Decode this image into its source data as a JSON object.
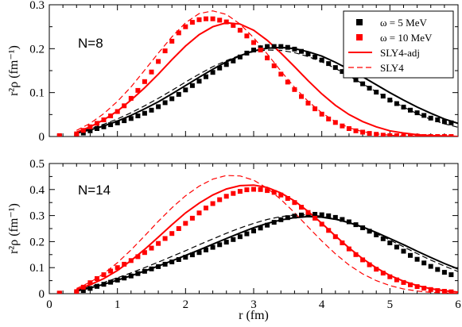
{
  "chart_data": [
    {
      "type": "scatter",
      "panel_label": "N=8",
      "ylabel": "r²ρ (fm⁻¹)",
      "xlabel": "",
      "xlim": [
        0,
        6
      ],
      "ylim": [
        0,
        0.3
      ],
      "xticks": [
        0,
        1,
        2,
        3,
        4,
        5,
        6
      ],
      "yticks": [
        0,
        0.1,
        0.2,
        0.3
      ],
      "ytick_labels": [
        "0",
        "0.1",
        "0.2",
        "0.3"
      ],
      "show_x_tick_labels": false,
      "legend_position": "top-right",
      "legend": [
        {
          "label": "ω =   5 MeV",
          "style": "square",
          "color": "#000000"
        },
        {
          "label": "ω = 10 MeV",
          "style": "square",
          "color": "#ff0000"
        },
        {
          "label": "SLY4-adj",
          "style": "solid",
          "color": "#ff0000"
        },
        {
          "label": "SLY4",
          "style": "dashed",
          "color": "#ff0000"
        }
      ],
      "series": [
        {
          "color": "#000000",
          "style": "square",
          "x": [
            0.15,
            0.4,
            0.5,
            0.6,
            0.7,
            0.8,
            0.9,
            1.0,
            1.1,
            1.2,
            1.3,
            1.4,
            1.5,
            1.6,
            1.7,
            1.8,
            1.9,
            2.0,
            2.1,
            2.2,
            2.3,
            2.4,
            2.5,
            2.6,
            2.7,
            2.8,
            2.9,
            3.0,
            3.1,
            3.2,
            3.3,
            3.4,
            3.5,
            3.6,
            3.7,
            3.8,
            3.9,
            4.0,
            4.1,
            4.2,
            4.3,
            4.4,
            4.5,
            4.6,
            4.7,
            4.8,
            4.9,
            5.0,
            5.1,
            5.2,
            5.3,
            5.4,
            5.5,
            5.6,
            5.7,
            5.8,
            5.9
          ],
          "y": [
            0.001,
            0.003,
            0.008,
            0.013,
            0.018,
            0.022,
            0.027,
            0.031,
            0.036,
            0.041,
            0.047,
            0.053,
            0.06,
            0.068,
            0.077,
            0.086,
            0.096,
            0.106,
            0.116,
            0.126,
            0.136,
            0.146,
            0.156,
            0.164,
            0.172,
            0.181,
            0.19,
            0.197,
            0.202,
            0.205,
            0.205,
            0.205,
            0.203,
            0.199,
            0.194,
            0.188,
            0.181,
            0.174,
            0.166,
            0.157,
            0.148,
            0.139,
            0.129,
            0.12,
            0.11,
            0.101,
            0.092,
            0.083,
            0.075,
            0.067,
            0.06,
            0.054,
            0.048,
            0.042,
            0.038,
            0.034,
            0.031
          ]
        },
        {
          "color": "#ff0000",
          "style": "square",
          "x": [
            0.15,
            0.4,
            0.5,
            0.6,
            0.7,
            0.8,
            0.9,
            1.0,
            1.1,
            1.2,
            1.3,
            1.4,
            1.5,
            1.6,
            1.7,
            1.8,
            1.9,
            2.0,
            2.1,
            2.2,
            2.3,
            2.4,
            2.5,
            2.6,
            2.7,
            2.8,
            2.9,
            3.0,
            3.1,
            3.2,
            3.3,
            3.4,
            3.5,
            3.6,
            3.7,
            3.8,
            3.9,
            4.0,
            4.1,
            4.2,
            4.3,
            4.4,
            4.5,
            4.6,
            4.7,
            4.8,
            4.9,
            5.0,
            5.1,
            5.2,
            5.3,
            5.4,
            5.5,
            5.6,
            5.7,
            5.8,
            5.9
          ],
          "y": [
            0.002,
            0.006,
            0.014,
            0.022,
            0.03,
            0.038,
            0.047,
            0.057,
            0.07,
            0.087,
            0.105,
            0.125,
            0.147,
            0.171,
            0.195,
            0.217,
            0.236,
            0.25,
            0.26,
            0.266,
            0.268,
            0.268,
            0.265,
            0.261,
            0.253,
            0.242,
            0.229,
            0.214,
            0.197,
            0.179,
            0.161,
            0.142,
            0.124,
            0.107,
            0.091,
            0.076,
            0.063,
            0.051,
            0.04,
            0.032,
            0.024,
            0.018,
            0.013,
            0.01,
            0.007,
            0.005,
            0.003,
            0.002,
            0.002,
            0.001,
            0.001,
            0.001,
            0.0,
            0.0,
            0.0,
            0.0,
            0.0
          ]
        },
        {
          "color": "#000000",
          "style": "solid",
          "x": [
            0.4,
            0.6,
            0.8,
            1.0,
            1.2,
            1.4,
            1.6,
            1.8,
            2.0,
            2.2,
            2.4,
            2.6,
            2.8,
            3.0,
            3.2,
            3.4,
            3.6,
            3.8,
            4.0,
            4.2,
            4.4,
            4.6,
            4.8,
            5.0,
            5.2,
            5.4,
            5.6,
            5.8,
            6.0
          ],
          "y": [
            0.008,
            0.015,
            0.024,
            0.035,
            0.048,
            0.063,
            0.079,
            0.097,
            0.116,
            0.135,
            0.153,
            0.17,
            0.184,
            0.195,
            0.201,
            0.203,
            0.2,
            0.193,
            0.183,
            0.169,
            0.153,
            0.136,
            0.118,
            0.1,
            0.083,
            0.067,
            0.053,
            0.04,
            0.03
          ]
        },
        {
          "color": "#000000",
          "style": "dashed",
          "x": [
            0.4,
            0.6,
            0.8,
            1.0,
            1.2,
            1.4,
            1.6,
            1.8,
            2.0,
            2.2,
            2.4,
            2.6,
            2.8,
            3.0,
            3.2,
            3.4,
            3.6,
            3.8,
            4.0,
            4.2,
            4.4,
            4.6,
            4.8,
            5.0,
            5.2,
            5.4,
            5.6,
            5.8,
            6.0
          ],
          "y": [
            0.01,
            0.018,
            0.028,
            0.04,
            0.054,
            0.07,
            0.087,
            0.105,
            0.124,
            0.142,
            0.159,
            0.173,
            0.185,
            0.193,
            0.197,
            0.196,
            0.191,
            0.182,
            0.17,
            0.155,
            0.138,
            0.12,
            0.102,
            0.084,
            0.067,
            0.052,
            0.039,
            0.029,
            0.021
          ]
        },
        {
          "color": "#ff0000",
          "style": "solid",
          "x": [
            0.4,
            0.6,
            0.8,
            1.0,
            1.2,
            1.4,
            1.6,
            1.8,
            2.0,
            2.2,
            2.4,
            2.6,
            2.8,
            3.0,
            3.2,
            3.4,
            3.6,
            3.8,
            4.0,
            4.2,
            4.4,
            4.6,
            4.8,
            5.0,
            5.2,
            5.4,
            5.6,
            5.8,
            6.0
          ],
          "y": [
            0.01,
            0.022,
            0.038,
            0.058,
            0.083,
            0.111,
            0.142,
            0.175,
            0.206,
            0.232,
            0.25,
            0.259,
            0.256,
            0.242,
            0.219,
            0.19,
            0.159,
            0.127,
            0.097,
            0.071,
            0.05,
            0.034,
            0.022,
            0.013,
            0.008,
            0.004,
            0.002,
            0.001,
            0.0
          ]
        },
        {
          "color": "#ff0000",
          "style": "dashed",
          "x": [
            0.4,
            0.6,
            0.8,
            1.0,
            1.2,
            1.4,
            1.6,
            1.8,
            2.0,
            2.2,
            2.4,
            2.6,
            2.8,
            3.0,
            3.2,
            3.4,
            3.6,
            3.8,
            4.0,
            4.2,
            4.4,
            4.6,
            4.8,
            5.0,
            5.2,
            5.4,
            5.6,
            5.8,
            6.0
          ],
          "y": [
            0.014,
            0.03,
            0.052,
            0.08,
            0.113,
            0.151,
            0.19,
            0.227,
            0.259,
            0.28,
            0.286,
            0.278,
            0.256,
            0.225,
            0.188,
            0.149,
            0.112,
            0.08,
            0.054,
            0.034,
            0.02,
            0.011,
            0.006,
            0.003,
            0.001,
            0.001,
            0.0,
            0.0,
            0.0
          ]
        }
      ]
    },
    {
      "type": "scatter",
      "panel_label": "N=14",
      "ylabel": "r²ρ (fm⁻¹)",
      "xlabel": "r (fm)",
      "xlim": [
        0,
        6
      ],
      "ylim": [
        0,
        0.5
      ],
      "xticks": [
        0,
        1,
        2,
        3,
        4,
        5,
        6
      ],
      "xtick_labels": [
        "0",
        "1",
        "2",
        "3",
        "4",
        "5",
        "6"
      ],
      "yticks": [
        0,
        0.1,
        0.2,
        0.3,
        0.4,
        0.5
      ],
      "ytick_labels": [
        "0",
        "0.1",
        "0.2",
        "0.3",
        "0.4",
        "0.5"
      ],
      "show_x_tick_labels": true,
      "series": [
        {
          "color": "#000000",
          "style": "square",
          "x": [
            0.15,
            0.4,
            0.5,
            0.6,
            0.7,
            0.8,
            0.9,
            1.0,
            1.1,
            1.2,
            1.3,
            1.4,
            1.5,
            1.6,
            1.7,
            1.8,
            1.9,
            2.0,
            2.1,
            2.2,
            2.3,
            2.4,
            2.5,
            2.6,
            2.7,
            2.8,
            2.9,
            3.0,
            3.1,
            3.2,
            3.3,
            3.4,
            3.5,
            3.6,
            3.7,
            3.8,
            3.9,
            4.0,
            4.1,
            4.2,
            4.3,
            4.4,
            4.5,
            4.6,
            4.7,
            4.8,
            4.9,
            5.0,
            5.1,
            5.2,
            5.3,
            5.4,
            5.5,
            5.6,
            5.7,
            5.8,
            5.9
          ],
          "y": [
            0.001,
            0.004,
            0.012,
            0.02,
            0.028,
            0.036,
            0.044,
            0.052,
            0.06,
            0.068,
            0.077,
            0.086,
            0.095,
            0.104,
            0.113,
            0.122,
            0.131,
            0.14,
            0.149,
            0.158,
            0.168,
            0.178,
            0.188,
            0.198,
            0.208,
            0.219,
            0.23,
            0.241,
            0.252,
            0.263,
            0.274,
            0.284,
            0.292,
            0.298,
            0.302,
            0.304,
            0.305,
            0.303,
            0.299,
            0.293,
            0.285,
            0.276,
            0.265,
            0.253,
            0.24,
            0.226,
            0.211,
            0.195,
            0.179,
            0.163,
            0.147,
            0.132,
            0.118,
            0.105,
            0.093,
            0.082,
            0.073
          ]
        },
        {
          "color": "#ff0000",
          "style": "square",
          "x": [
            0.15,
            0.4,
            0.5,
            0.6,
            0.7,
            0.8,
            0.9,
            1.0,
            1.1,
            1.2,
            1.3,
            1.4,
            1.5,
            1.6,
            1.7,
            1.8,
            1.9,
            2.0,
            2.1,
            2.2,
            2.3,
            2.4,
            2.5,
            2.6,
            2.7,
            2.8,
            2.9,
            3.0,
            3.1,
            3.2,
            3.3,
            3.4,
            3.5,
            3.6,
            3.7,
            3.8,
            3.9,
            4.0,
            4.1,
            4.2,
            4.3,
            4.4,
            4.5,
            4.6,
            4.7,
            4.8,
            4.9,
            5.0,
            5.1,
            5.2,
            5.3,
            5.4,
            5.5,
            5.6,
            5.7,
            5.8,
            5.9
          ],
          "y": [
            0.002,
            0.008,
            0.025,
            0.042,
            0.058,
            0.073,
            0.087,
            0.1,
            0.113,
            0.127,
            0.142,
            0.158,
            0.175,
            0.193,
            0.212,
            0.231,
            0.25,
            0.27,
            0.29,
            0.31,
            0.329,
            0.346,
            0.361,
            0.374,
            0.385,
            0.393,
            0.399,
            0.401,
            0.4,
            0.396,
            0.389,
            0.379,
            0.366,
            0.35,
            0.332,
            0.312,
            0.29,
            0.267,
            0.243,
            0.219,
            0.195,
            0.172,
            0.15,
            0.13,
            0.111,
            0.094,
            0.079,
            0.065,
            0.053,
            0.043,
            0.034,
            0.027,
            0.021,
            0.016,
            0.012,
            0.009,
            0.007
          ]
        },
        {
          "color": "#000000",
          "style": "solid",
          "x": [
            0.4,
            0.6,
            0.8,
            1.0,
            1.2,
            1.4,
            1.6,
            1.8,
            2.0,
            2.2,
            2.4,
            2.6,
            2.8,
            3.0,
            3.2,
            3.4,
            3.6,
            3.8,
            4.0,
            4.2,
            4.4,
            4.6,
            4.8,
            5.0,
            5.2,
            5.4,
            5.6,
            5.8,
            6.0
          ],
          "y": [
            0.01,
            0.022,
            0.036,
            0.052,
            0.069,
            0.087,
            0.106,
            0.126,
            0.147,
            0.168,
            0.19,
            0.212,
            0.233,
            0.253,
            0.27,
            0.283,
            0.292,
            0.296,
            0.294,
            0.286,
            0.273,
            0.256,
            0.235,
            0.212,
            0.188,
            0.163,
            0.139,
            0.116,
            0.095
          ]
        },
        {
          "color": "#000000",
          "style": "dashed",
          "x": [
            0.4,
            0.6,
            0.8,
            1.0,
            1.2,
            1.4,
            1.6,
            1.8,
            2.0,
            2.2,
            2.4,
            2.6,
            2.8,
            3.0,
            3.2,
            3.4,
            3.6,
            3.8,
            4.0,
            4.2,
            4.4,
            4.6,
            4.8,
            5.0,
            5.2,
            5.4,
            5.6,
            5.8,
            6.0
          ],
          "y": [
            0.013,
            0.027,
            0.043,
            0.061,
            0.08,
            0.1,
            0.121,
            0.143,
            0.165,
            0.188,
            0.21,
            0.232,
            0.252,
            0.27,
            0.285,
            0.296,
            0.302,
            0.303,
            0.298,
            0.288,
            0.273,
            0.254,
            0.231,
            0.206,
            0.18,
            0.154,
            0.129,
            0.106,
            0.085
          ]
        },
        {
          "color": "#ff0000",
          "style": "solid",
          "x": [
            0.4,
            0.6,
            0.8,
            1.0,
            1.2,
            1.4,
            1.6,
            1.8,
            2.0,
            2.2,
            2.4,
            2.6,
            2.8,
            3.0,
            3.2,
            3.4,
            3.6,
            3.8,
            4.0,
            4.2,
            4.4,
            4.6,
            4.8,
            5.0,
            5.2,
            5.4,
            5.6,
            5.8,
            6.0
          ],
          "y": [
            0.016,
            0.034,
            0.058,
            0.089,
            0.127,
            0.17,
            0.217,
            0.265,
            0.31,
            0.348,
            0.379,
            0.402,
            0.415,
            0.417,
            0.408,
            0.387,
            0.356,
            0.316,
            0.27,
            0.222,
            0.176,
            0.134,
            0.099,
            0.07,
            0.048,
            0.031,
            0.019,
            0.011,
            0.006
          ]
        },
        {
          "color": "#ff0000",
          "style": "dashed",
          "x": [
            0.4,
            0.6,
            0.8,
            1.0,
            1.2,
            1.4,
            1.6,
            1.8,
            2.0,
            2.2,
            2.4,
            2.6,
            2.8,
            3.0,
            3.2,
            3.4,
            3.6,
            3.8,
            4.0,
            4.2,
            4.4,
            4.6,
            4.8,
            5.0,
            5.2,
            5.4,
            5.6,
            5.8,
            6.0
          ],
          "y": [
            0.02,
            0.044,
            0.077,
            0.119,
            0.168,
            0.222,
            0.278,
            0.33,
            0.376,
            0.413,
            0.44,
            0.454,
            0.452,
            0.436,
            0.405,
            0.362,
            0.311,
            0.256,
            0.202,
            0.153,
            0.11,
            0.076,
            0.05,
            0.031,
            0.018,
            0.01,
            0.005,
            0.003,
            0.001
          ]
        }
      ]
    }
  ]
}
